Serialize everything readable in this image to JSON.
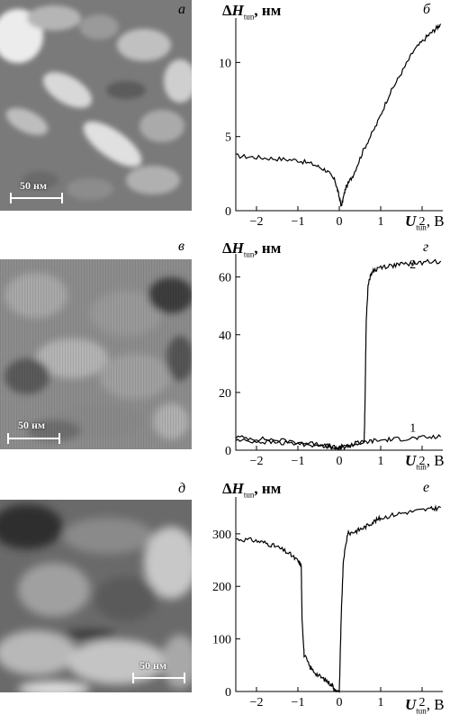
{
  "panels": [
    {
      "image_letter": "а",
      "scale_label": "50 нм",
      "chart_letter": "б",
      "chart_data": {
        "type": "line",
        "ylabel": "ΔH_tun, нм",
        "xlabel": "U_tun, B",
        "xlim": [
          -2.5,
          2.5
        ],
        "ylim": [
          0,
          13
        ],
        "xticks": [
          "−2",
          "−1",
          "0",
          "1",
          "2"
        ],
        "yticks": [
          "0",
          "5",
          "10"
        ],
        "series": [
          {
            "name": "",
            "points": [
              [
                -2.5,
                3.7
              ],
              [
                -2.0,
                3.6
              ],
              [
                -1.5,
                3.5
              ],
              [
                -1.0,
                3.4
              ],
              [
                -0.6,
                3.1
              ],
              [
                -0.3,
                2.7
              ],
              [
                -0.1,
                2.0
              ],
              [
                0.0,
                0.9
              ],
              [
                0.05,
                0.3
              ],
              [
                0.15,
                1.5
              ],
              [
                0.35,
                2.5
              ],
              [
                0.6,
                4.2
              ],
              [
                0.9,
                5.8
              ],
              [
                1.2,
                7.8
              ],
              [
                1.5,
                9.3
              ],
              [
                1.8,
                10.8
              ],
              [
                2.1,
                11.7
              ],
              [
                2.3,
                12.2
              ],
              [
                2.45,
                12.6
              ]
            ]
          }
        ]
      }
    },
    {
      "image_letter": "в",
      "scale_label": "50 нм",
      "chart_letter": "г",
      "chart_data": {
        "type": "line",
        "ylabel": "ΔH_tun, нм",
        "xlabel": "U_tun, B",
        "xlim": [
          -2.5,
          2.5
        ],
        "ylim": [
          0,
          68
        ],
        "xticks": [
          "−2",
          "−1",
          "0",
          "1",
          "2"
        ],
        "yticks": [
          "0",
          "20",
          "40",
          "60"
        ],
        "series": [
          {
            "name": "1",
            "points": [
              [
                -2.5,
                4.5
              ],
              [
                -2.0,
                4.0
              ],
              [
                -1.5,
                3.5
              ],
              [
                -1.0,
                2.8
              ],
              [
                -0.5,
                2.0
              ],
              [
                -0.2,
                1.2
              ],
              [
                0.0,
                0.5
              ],
              [
                0.2,
                1.5
              ],
              [
                0.5,
                2.5
              ],
              [
                0.8,
                3.2
              ],
              [
                1.2,
                3.7
              ],
              [
                1.6,
                4.0
              ],
              [
                2.0,
                4.3
              ],
              [
                2.45,
                4.6
              ]
            ]
          },
          {
            "name": "2",
            "points": [
              [
                -2.5,
                3.5
              ],
              [
                -2.0,
                3.0
              ],
              [
                -1.5,
                2.6
              ],
              [
                -1.0,
                2.2
              ],
              [
                -0.5,
                1.8
              ],
              [
                0.0,
                1.0
              ],
              [
                0.3,
                2.0
              ],
              [
                0.6,
                3.0
              ],
              [
                0.62,
                15.0
              ],
              [
                0.65,
                45.0
              ],
              [
                0.7,
                58.0
              ],
              [
                0.8,
                62.0
              ],
              [
                1.0,
                63.5
              ],
              [
                1.3,
                64.0
              ],
              [
                1.6,
                64.5
              ],
              [
                2.0,
                65.0
              ],
              [
                2.45,
                65.5
              ]
            ]
          }
        ]
      }
    },
    {
      "image_letter": "д",
      "scale_label": "50 нм",
      "chart_letter": "е",
      "chart_data": {
        "type": "line",
        "ylabel": "ΔH_tun, нм",
        "xlabel": "U_tun, B",
        "xlim": [
          -2.5,
          2.5
        ],
        "ylim": [
          0,
          370
        ],
        "xticks": [
          "−2",
          "−1",
          "0",
          "1",
          "2"
        ],
        "yticks": [
          "0",
          "100",
          "200",
          "300"
        ],
        "series": [
          {
            "name": "",
            "points": [
              [
                -2.5,
                290
              ],
              [
                -2.1,
                288
              ],
              [
                -1.8,
                283
              ],
              [
                -1.5,
                275
              ],
              [
                -1.2,
                262
              ],
              [
                -1.0,
                248
              ],
              [
                -0.92,
                240
              ],
              [
                -0.9,
                140
              ],
              [
                -0.85,
                70
              ],
              [
                -0.7,
                45
              ],
              [
                -0.5,
                30
              ],
              [
                -0.3,
                20
              ],
              [
                -0.15,
                10
              ],
              [
                -0.1,
                0
              ],
              [
                0.0,
                0
              ],
              [
                0.05,
                150
              ],
              [
                0.1,
                250
              ],
              [
                0.2,
                300
              ],
              [
                0.4,
                305
              ],
              [
                0.6,
                312
              ],
              [
                0.8,
                322
              ],
              [
                1.0,
                330
              ],
              [
                1.4,
                338
              ],
              [
                1.8,
                343
              ],
              [
                2.2,
                347
              ],
              [
                2.45,
                350
              ]
            ]
          }
        ]
      }
    }
  ]
}
